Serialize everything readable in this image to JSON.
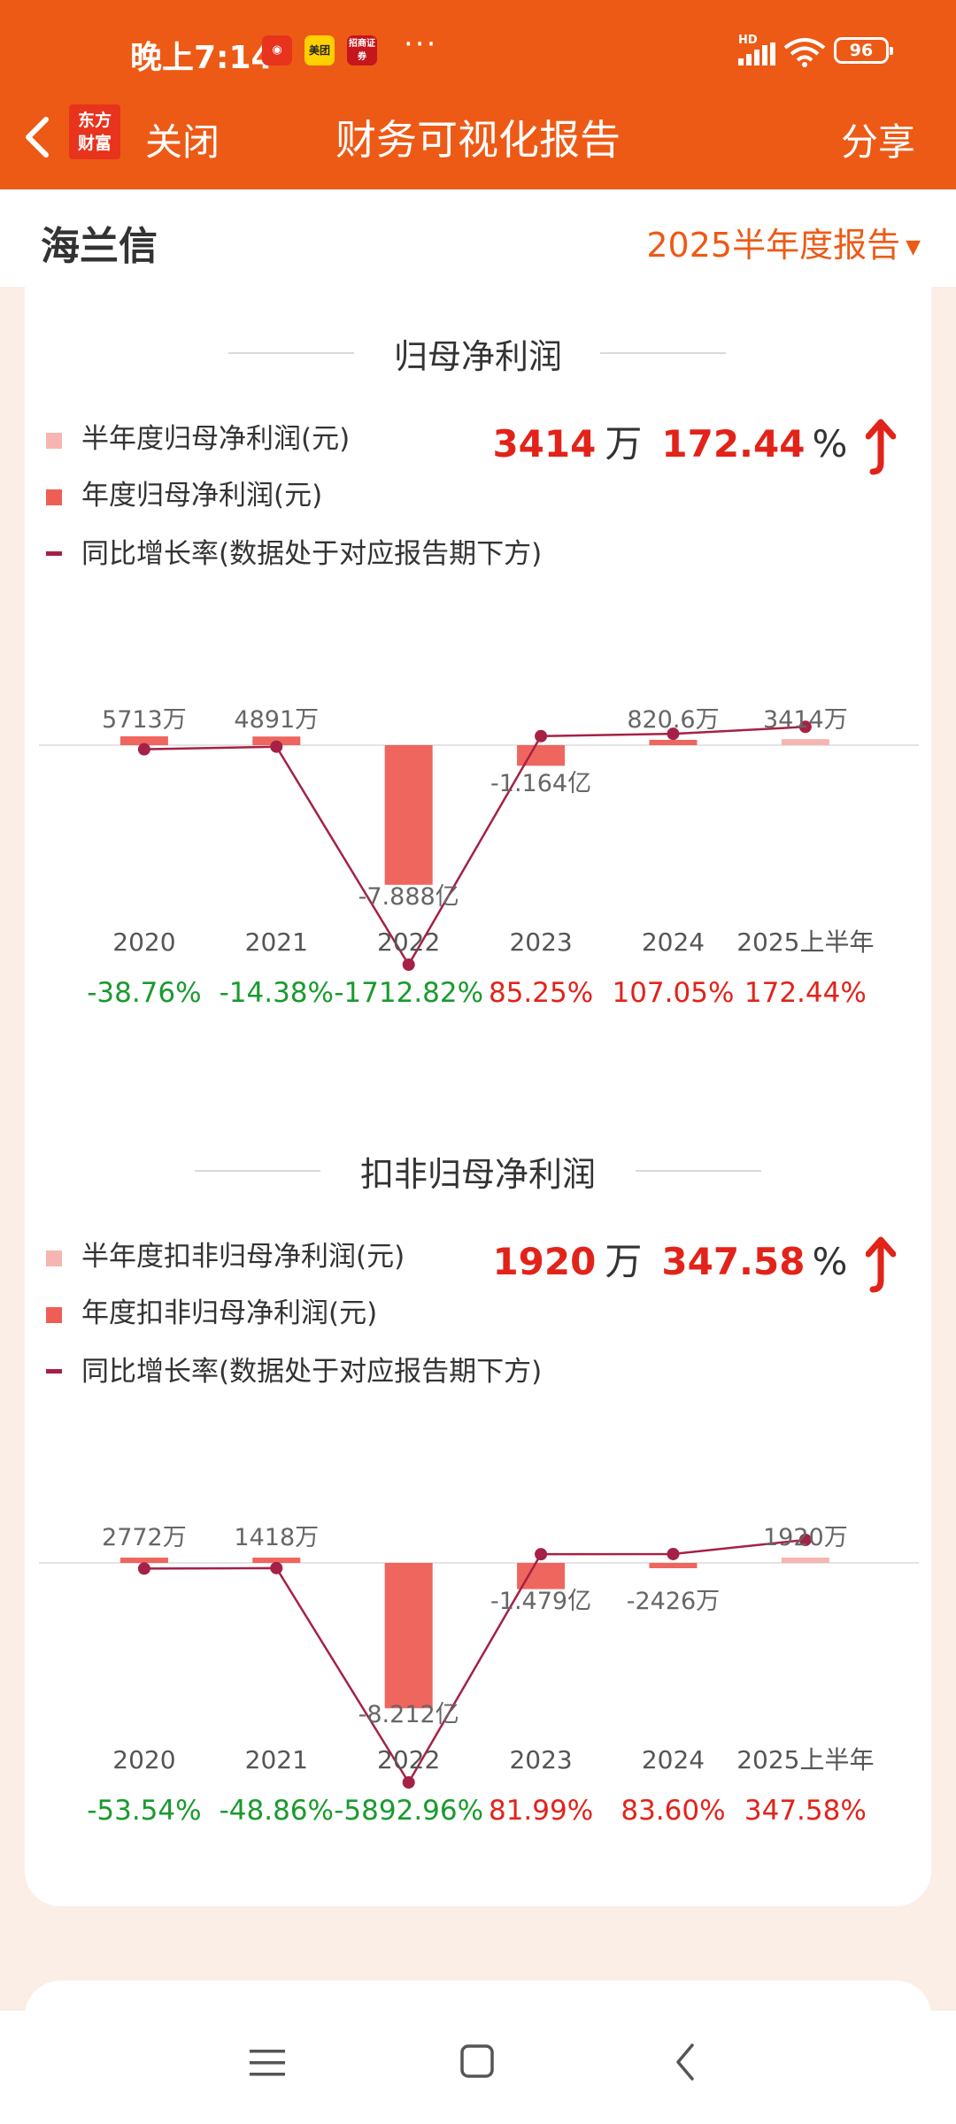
{
  "status_bar": {
    "time": "晚上7:14",
    "apps": [
      "app-red-icon",
      "meituan-icon",
      "cmb-icon"
    ],
    "app_labels": [
      "",
      "美团",
      "招商证券"
    ],
    "more": "···",
    "network": "HD",
    "battery": "96"
  },
  "nav": {
    "logo": "东方财富",
    "close": "关闭",
    "title": "财务可视化报告",
    "share": "分享"
  },
  "header": {
    "stock_name": "海兰信",
    "period": "2025半年度报告"
  },
  "colors": {
    "brand": "#ed5a16",
    "half_year_bar": "#f5b6b1",
    "annual_bar": "#ee5e55",
    "growth_line": "#a52145",
    "negative_growth": "#1a9a2e",
    "positive_growth": "#e2231a"
  },
  "sections": [
    {
      "title": "归母净利润",
      "legend": [
        "半年度归母净利润(元)",
        "年度归母净利润(元)",
        "同比增长率(数据处于对应报告期下方)"
      ],
      "headline_value": "3414",
      "headline_unit": "万",
      "headline_pct": "172.44",
      "headline_pct_sign": "%"
    },
    {
      "title": "扣非归母净利润",
      "legend": [
        "半年度扣非归母净利润(元)",
        "年度扣非归母净利润(元)",
        "同比增长率(数据处于对应报告期下方)"
      ],
      "headline_value": "1920",
      "headline_unit": "万",
      "headline_pct": "347.58",
      "headline_pct_sign": "%"
    }
  ],
  "chart_data": [
    {
      "type": "bar",
      "title": "归母净利润",
      "categories": [
        "2020",
        "2021",
        "2022",
        "2023",
        "2024",
        "2025上半年"
      ],
      "series": [
        {
          "name": "年度归母净利润(元)",
          "values": [
            57130000,
            48910000,
            -788800000,
            -116400000,
            8206000,
            null
          ]
        },
        {
          "name": "半年度归母净利润(元)",
          "values": [
            null,
            null,
            null,
            null,
            null,
            34140000
          ]
        },
        {
          "name": "同比增长率(数据处于对应报告期下方)",
          "type": "line",
          "values": [
            -38.76,
            -14.38,
            -1712.82,
            85.25,
            107.05,
            172.44
          ]
        }
      ],
      "value_labels": [
        "5713万",
        "4891万",
        "-7.888亿",
        "-1.164亿",
        "820.6万",
        "3414万"
      ],
      "growth_labels": [
        "-38.76%",
        "-14.38%",
        "-1712.82%",
        "85.25%",
        "107.05%",
        "172.44%"
      ]
    },
    {
      "type": "bar",
      "title": "扣非归母净利润",
      "categories": [
        "2020",
        "2021",
        "2022",
        "2023",
        "2024",
        "2025上半年"
      ],
      "series": [
        {
          "name": "年度扣非归母净利润(元)",
          "values": [
            27720000,
            14180000,
            -821200000,
            -147900000,
            -24260000,
            null
          ]
        },
        {
          "name": "半年度扣非归母净利润(元)",
          "values": [
            null,
            null,
            null,
            null,
            null,
            19200000
          ]
        },
        {
          "name": "同比增长率(数据处于对应报告期下方)",
          "type": "line",
          "values": [
            -53.54,
            -48.86,
            -5892.96,
            81.99,
            83.6,
            347.58
          ]
        }
      ],
      "value_labels": [
        "2772万",
        "1418万",
        "-8.212亿",
        "-1.479亿",
        "-2426万",
        "1920万"
      ],
      "growth_labels": [
        "-53.54%",
        "-48.86%",
        "-5892.96%",
        "81.99%",
        "83.60%",
        "347.58%"
      ]
    }
  ],
  "system_nav": [
    "menu-icon",
    "home-icon",
    "back-icon"
  ]
}
